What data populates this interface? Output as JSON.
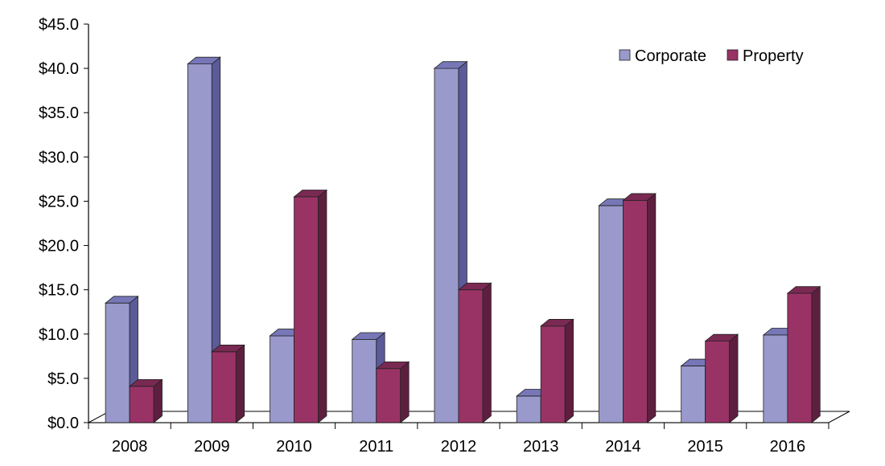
{
  "chart_data": {
    "type": "bar",
    "title": "",
    "xlabel": "",
    "ylabel": "",
    "categories": [
      "2008",
      "2009",
      "2010",
      "2011",
      "2012",
      "2013",
      "2014",
      "2015",
      "2016"
    ],
    "series": [
      {
        "name": "Corporate",
        "color": "#9999cc",
        "side_color": "#5b5b99",
        "top_color": "#7777b8",
        "values": [
          13.5,
          40.5,
          9.8,
          9.4,
          40.0,
          3.0,
          24.5,
          6.4,
          9.9
        ]
      },
      {
        "name": "Property",
        "color": "#993366",
        "side_color": "#5e1f3f",
        "top_color": "#7a2952",
        "values": [
          4.1,
          8.0,
          25.5,
          6.1,
          15.0,
          10.9,
          25.1,
          9.2,
          14.6
        ]
      }
    ],
    "y_ticks": [
      "$0.0",
      "$5.0",
      "$10.0",
      "$15.0",
      "$20.0",
      "$25.0",
      "$30.0",
      "$35.0",
      "$40.0",
      "$45.0"
    ],
    "ylim": [
      0,
      45
    ],
    "y_tick_step": 5,
    "grid": false,
    "legend_position": "top-right",
    "style": "3d-clustered-column"
  }
}
